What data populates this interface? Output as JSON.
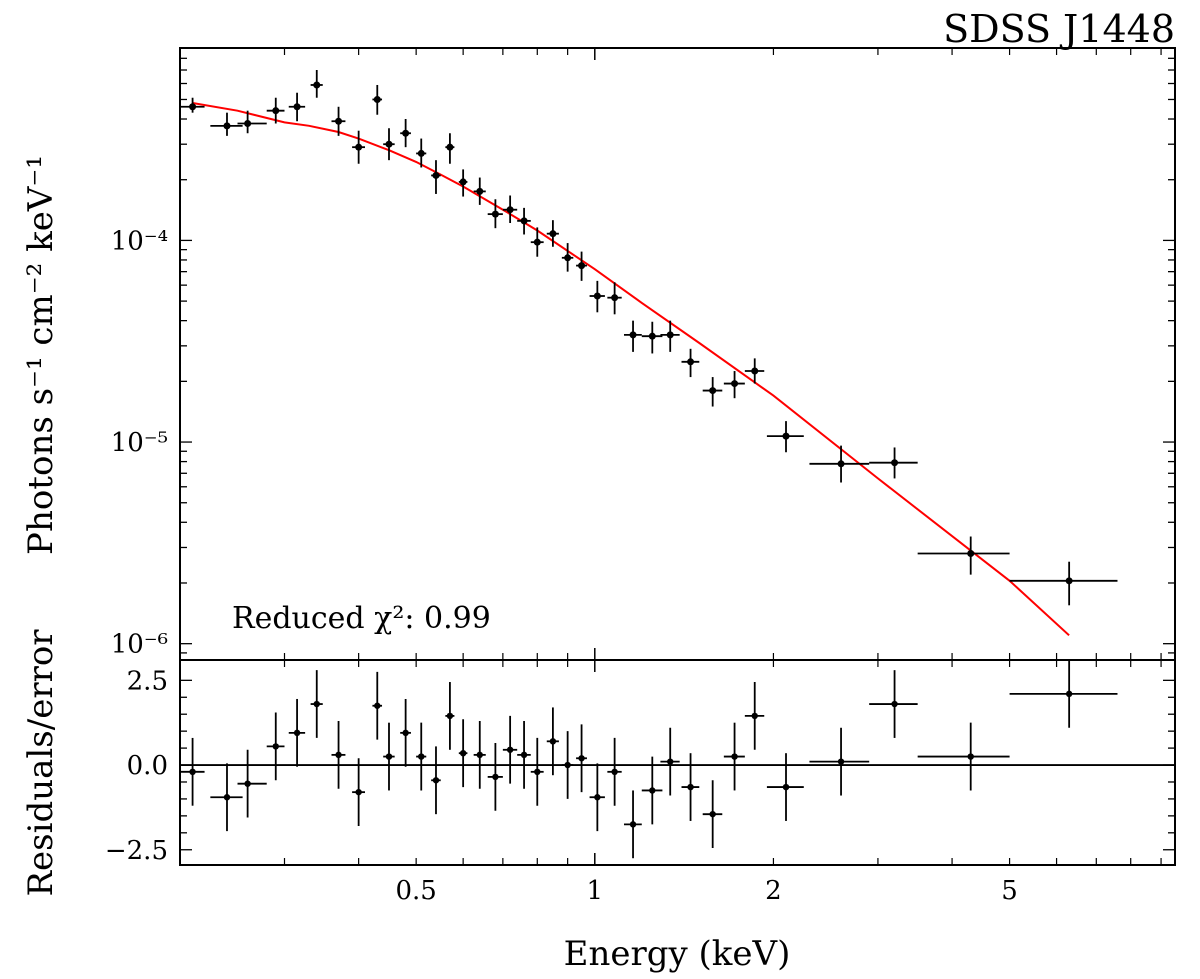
{
  "chart_data": [
    {
      "panel": "spectrum",
      "type": "scatter",
      "title": "SDSS J1448",
      "ylabel": "Photons s⁻¹ cm⁻² keV⁻¹",
      "xscale": "log",
      "yscale": "log",
      "xlim": [
        0.2,
        9.5
      ],
      "ylim": [
        8.3e-07,
        0.0009
      ],
      "ytick_labels": [
        {
          "value": 1e-06,
          "label": "10⁻⁶"
        },
        {
          "value": 1e-05,
          "label": "10⁻⁵"
        },
        {
          "value": 0.0001,
          "label": "10⁻⁴"
        }
      ],
      "annotation": "Reduced χ²: 0.99",
      "series": [
        {
          "kind": "data",
          "color": "#000000",
          "points": [
            {
              "x": 0.21,
              "y": 0.00046,
              "xerr": [
                0.01,
                0.01
              ],
              "yerr": [
                3e-05,
                5e-05
              ]
            },
            {
              "x": 0.24,
              "y": 0.00037,
              "xerr": [
                0.015,
                0.015
              ],
              "yerr": [
                4e-05,
                6e-05
              ]
            },
            {
              "x": 0.26,
              "y": 0.00038,
              "xerr": [
                0.01,
                0.02
              ],
              "yerr": [
                4e-05,
                6e-05
              ]
            },
            {
              "x": 0.29,
              "y": 0.00044,
              "xerr": [
                0.01,
                0.01
              ],
              "yerr": [
                6e-05,
                7e-05
              ]
            },
            {
              "x": 0.315,
              "y": 0.00046,
              "xerr": [
                0.01,
                0.01
              ],
              "yerr": [
                7e-05,
                8e-05
              ]
            },
            {
              "x": 0.34,
              "y": 0.00059,
              "xerr": [
                0.008,
                0.008
              ],
              "yerr": [
                8e-05,
                0.00011
              ]
            },
            {
              "x": 0.37,
              "y": 0.00039,
              "xerr": [
                0.01,
                0.01
              ],
              "yerr": [
                6e-05,
                7e-05
              ]
            },
            {
              "x": 0.4,
              "y": 0.00029,
              "xerr": [
                0.01,
                0.01
              ],
              "yerr": [
                5e-05,
                6e-05
              ]
            },
            {
              "x": 0.43,
              "y": 0.0005,
              "xerr": [
                0.008,
                0.008
              ],
              "yerr": [
                8e-05,
                9e-05
              ]
            },
            {
              "x": 0.45,
              "y": 0.0003,
              "xerr": [
                0.01,
                0.01
              ],
              "yerr": [
                5e-05,
                6e-05
              ]
            },
            {
              "x": 0.48,
              "y": 0.00034,
              "xerr": [
                0.01,
                0.01
              ],
              "yerr": [
                5e-05,
                6e-05
              ]
            },
            {
              "x": 0.51,
              "y": 0.00027,
              "xerr": [
                0.01,
                0.01
              ],
              "yerr": [
                4e-05,
                5e-05
              ]
            },
            {
              "x": 0.54,
              "y": 0.00021,
              "xerr": [
                0.01,
                0.01
              ],
              "yerr": [
                4e-05,
                4e-05
              ]
            },
            {
              "x": 0.57,
              "y": 0.00029,
              "xerr": [
                0.01,
                0.01
              ],
              "yerr": [
                5e-05,
                5e-05
              ]
            },
            {
              "x": 0.6,
              "y": 0.000195,
              "xerr": [
                0.01,
                0.01
              ],
              "yerr": [
                3e-05,
                3e-05
              ]
            },
            {
              "x": 0.64,
              "y": 0.000175,
              "xerr": [
                0.015,
                0.015
              ],
              "yerr": [
                2.5e-05,
                3e-05
              ]
            },
            {
              "x": 0.68,
              "y": 0.000135,
              "xerr": [
                0.02,
                0.02
              ],
              "yerr": [
                2e-05,
                2.5e-05
              ]
            },
            {
              "x": 0.72,
              "y": 0.000142,
              "xerr": [
                0.02,
                0.02
              ],
              "yerr": [
                2e-05,
                2.5e-05
              ]
            },
            {
              "x": 0.76,
              "y": 0.000125,
              "xerr": [
                0.02,
                0.02
              ],
              "yerr": [
                1.8e-05,
                2e-05
              ]
            },
            {
              "x": 0.8,
              "y": 9.8e-05,
              "xerr": [
                0.02,
                0.02
              ],
              "yerr": [
                1.5e-05,
                1.8e-05
              ]
            },
            {
              "x": 0.85,
              "y": 0.000108,
              "xerr": [
                0.02,
                0.02
              ],
              "yerr": [
                1.5e-05,
                1.8e-05
              ]
            },
            {
              "x": 0.9,
              "y": 8.2e-05,
              "xerr": [
                0.02,
                0.02
              ],
              "yerr": [
                1.2e-05,
                1.5e-05
              ]
            },
            {
              "x": 0.95,
              "y": 7.5e-05,
              "xerr": [
                0.02,
                0.02
              ],
              "yerr": [
                1.2e-05,
                1.3e-05
              ]
            },
            {
              "x": 1.01,
              "y": 5.3e-05,
              "xerr": [
                0.03,
                0.03
              ],
              "yerr": [
                9e-06,
                1e-05
              ]
            },
            {
              "x": 1.08,
              "y": 5.2e-05,
              "xerr": [
                0.03,
                0.03
              ],
              "yerr": [
                9e-06,
                1e-05
              ]
            },
            {
              "x": 1.16,
              "y": 3.4e-05,
              "xerr": [
                0.04,
                0.04
              ],
              "yerr": [
                6e-06,
                6e-06
              ]
            },
            {
              "x": 1.25,
              "y": 3.35e-05,
              "xerr": [
                0.05,
                0.05
              ],
              "yerr": [
                6e-06,
                6e-06
              ]
            },
            {
              "x": 1.34,
              "y": 3.4e-05,
              "xerr": [
                0.05,
                0.05
              ],
              "yerr": [
                6e-06,
                6e-06
              ]
            },
            {
              "x": 1.45,
              "y": 2.5e-05,
              "xerr": [
                0.05,
                0.05
              ],
              "yerr": [
                4e-06,
                4e-06
              ]
            },
            {
              "x": 1.58,
              "y": 1.8e-05,
              "xerr": [
                0.06,
                0.06
              ],
              "yerr": [
                3e-06,
                3e-06
              ]
            },
            {
              "x": 1.72,
              "y": 1.95e-05,
              "xerr": [
                0.07,
                0.07
              ],
              "yerr": [
                3e-06,
                3e-06
              ]
            },
            {
              "x": 1.86,
              "y": 2.25e-05,
              "xerr": [
                0.07,
                0.07
              ],
              "yerr": [
                3e-06,
                3.5e-06
              ]
            },
            {
              "x": 2.1,
              "y": 1.07e-05,
              "xerr": [
                0.15,
                0.15
              ],
              "yerr": [
                1.8e-06,
                2e-06
              ]
            },
            {
              "x": 2.6,
              "y": 7.8e-06,
              "xerr": [
                0.3,
                0.3
              ],
              "yerr": [
                1.5e-06,
                1.8e-06
              ]
            },
            {
              "x": 3.2,
              "y": 7.9e-06,
              "xerr": [
                0.3,
                0.3
              ],
              "yerr": [
                1.3e-06,
                1.5e-06
              ]
            },
            {
              "x": 4.3,
              "y": 2.8e-06,
              "xerr": [
                0.8,
                0.7
              ],
              "yerr": [
                6e-07,
                6e-07
              ]
            },
            {
              "x": 6.3,
              "y": 2.05e-06,
              "xerr": [
                1.3,
                1.3
              ],
              "yerr": [
                5e-07,
                5e-07
              ]
            }
          ]
        },
        {
          "kind": "model",
          "color": "#ff0000",
          "x": [
            0.21,
            0.25,
            0.3,
            0.33,
            0.37,
            0.4,
            0.45,
            0.5,
            0.55,
            0.6,
            0.7,
            0.8,
            1.0,
            1.2,
            1.5,
            2.0,
            3.0,
            5.0,
            6.3
          ],
          "y": [
            0.00048,
            0.00044,
            0.000385,
            0.00037,
            0.000345,
            0.00032,
            0.00028,
            0.000245,
            0.000212,
            0.000185,
            0.000142,
            0.000112,
            7.2e-05,
            4.9e-05,
            3.1e-05,
            1.7e-05,
            6.6e-06,
            2.05e-06,
            1.1e-06
          ]
        }
      ]
    },
    {
      "panel": "residuals",
      "type": "scatter",
      "xlabel": "Energy (keV)",
      "ylabel": "Residuals/error",
      "xscale": "log",
      "xlim": [
        0.2,
        9.5
      ],
      "ylim": [
        -2.95,
        3.1
      ],
      "zero_line": 0,
      "xtick_labels": [
        {
          "value": 0.5,
          "label": "0.5"
        },
        {
          "value": 1,
          "label": "1"
        },
        {
          "value": 2,
          "label": "2"
        },
        {
          "value": 5,
          "label": "5"
        }
      ],
      "ytick_labels": [
        {
          "value": 2.5,
          "label": "2.5"
        },
        {
          "value": 0,
          "label": "0.0"
        },
        {
          "value": -2.5,
          "label": "−2.5"
        }
      ],
      "points": [
        {
          "x": 0.21,
          "y": -0.2,
          "xerr": [
            0.01,
            0.01
          ],
          "yerr": [
            1.0,
            1.0
          ]
        },
        {
          "x": 0.24,
          "y": -0.95,
          "xerr": [
            0.015,
            0.015
          ],
          "yerr": [
            1.0,
            1.0
          ]
        },
        {
          "x": 0.26,
          "y": -0.55,
          "xerr": [
            0.01,
            0.02
          ],
          "yerr": [
            1.0,
            1.0
          ]
        },
        {
          "x": 0.29,
          "y": 0.55,
          "xerr": [
            0.01,
            0.01
          ],
          "yerr": [
            1.0,
            1.0
          ]
        },
        {
          "x": 0.315,
          "y": 0.95,
          "xerr": [
            0.01,
            0.01
          ],
          "yerr": [
            1.0,
            1.0
          ]
        },
        {
          "x": 0.34,
          "y": 1.8,
          "xerr": [
            0.008,
            0.008
          ],
          "yerr": [
            1.0,
            1.0
          ]
        },
        {
          "x": 0.37,
          "y": 0.3,
          "xerr": [
            0.01,
            0.01
          ],
          "yerr": [
            1.0,
            1.0
          ]
        },
        {
          "x": 0.4,
          "y": -0.8,
          "xerr": [
            0.01,
            0.01
          ],
          "yerr": [
            1.0,
            1.0
          ]
        },
        {
          "x": 0.43,
          "y": 1.75,
          "xerr": [
            0.008,
            0.008
          ],
          "yerr": [
            1.0,
            1.0
          ]
        },
        {
          "x": 0.45,
          "y": 0.25,
          "xerr": [
            0.01,
            0.01
          ],
          "yerr": [
            1.0,
            1.0
          ]
        },
        {
          "x": 0.48,
          "y": 0.95,
          "xerr": [
            0.01,
            0.01
          ],
          "yerr": [
            1.0,
            1.0
          ]
        },
        {
          "x": 0.51,
          "y": 0.25,
          "xerr": [
            0.01,
            0.01
          ],
          "yerr": [
            1.0,
            1.0
          ]
        },
        {
          "x": 0.54,
          "y": -0.45,
          "xerr": [
            0.01,
            0.01
          ],
          "yerr": [
            1.0,
            1.0
          ]
        },
        {
          "x": 0.57,
          "y": 1.45,
          "xerr": [
            0.01,
            0.01
          ],
          "yerr": [
            1.0,
            1.0
          ]
        },
        {
          "x": 0.6,
          "y": 0.35,
          "xerr": [
            0.01,
            0.01
          ],
          "yerr": [
            1.0,
            1.0
          ]
        },
        {
          "x": 0.64,
          "y": 0.3,
          "xerr": [
            0.015,
            0.015
          ],
          "yerr": [
            1.0,
            1.0
          ]
        },
        {
          "x": 0.68,
          "y": -0.35,
          "xerr": [
            0.02,
            0.02
          ],
          "yerr": [
            1.0,
            1.0
          ]
        },
        {
          "x": 0.72,
          "y": 0.45,
          "xerr": [
            0.02,
            0.02
          ],
          "yerr": [
            1.0,
            1.0
          ]
        },
        {
          "x": 0.76,
          "y": 0.3,
          "xerr": [
            0.02,
            0.02
          ],
          "yerr": [
            1.0,
            1.0
          ]
        },
        {
          "x": 0.8,
          "y": -0.2,
          "xerr": [
            0.02,
            0.02
          ],
          "yerr": [
            1.0,
            1.0
          ]
        },
        {
          "x": 0.85,
          "y": 0.7,
          "xerr": [
            0.02,
            0.02
          ],
          "yerr": [
            1.0,
            1.0
          ]
        },
        {
          "x": 0.9,
          "y": 0.0,
          "xerr": [
            0.02,
            0.02
          ],
          "yerr": [
            1.0,
            1.0
          ]
        },
        {
          "x": 0.95,
          "y": 0.2,
          "xerr": [
            0.02,
            0.02
          ],
          "yerr": [
            1.0,
            1.0
          ]
        },
        {
          "x": 1.01,
          "y": -0.95,
          "xerr": [
            0.03,
            0.03
          ],
          "yerr": [
            1.0,
            1.0
          ]
        },
        {
          "x": 1.08,
          "y": -0.2,
          "xerr": [
            0.03,
            0.03
          ],
          "yerr": [
            1.0,
            1.0
          ]
        },
        {
          "x": 1.16,
          "y": -1.75,
          "xerr": [
            0.04,
            0.04
          ],
          "yerr": [
            1.0,
            1.0
          ]
        },
        {
          "x": 1.25,
          "y": -0.75,
          "xerr": [
            0.05,
            0.05
          ],
          "yerr": [
            1.0,
            1.0
          ]
        },
        {
          "x": 1.34,
          "y": 0.1,
          "xerr": [
            0.05,
            0.05
          ],
          "yerr": [
            1.0,
            1.0
          ]
        },
        {
          "x": 1.45,
          "y": -0.65,
          "xerr": [
            0.05,
            0.05
          ],
          "yerr": [
            1.0,
            1.0
          ]
        },
        {
          "x": 1.58,
          "y": -1.45,
          "xerr": [
            0.06,
            0.06
          ],
          "yerr": [
            1.0,
            1.0
          ]
        },
        {
          "x": 1.72,
          "y": 0.25,
          "xerr": [
            0.07,
            0.07
          ],
          "yerr": [
            1.0,
            1.0
          ]
        },
        {
          "x": 1.86,
          "y": 1.45,
          "xerr": [
            0.07,
            0.07
          ],
          "yerr": [
            1.0,
            1.0
          ]
        },
        {
          "x": 2.1,
          "y": -0.65,
          "xerr": [
            0.15,
            0.15
          ],
          "yerr": [
            1.0,
            1.0
          ]
        },
        {
          "x": 2.6,
          "y": 0.1,
          "xerr": [
            0.3,
            0.3
          ],
          "yerr": [
            1.0,
            1.0
          ]
        },
        {
          "x": 3.2,
          "y": 1.8,
          "xerr": [
            0.3,
            0.3
          ],
          "yerr": [
            1.0,
            1.0
          ]
        },
        {
          "x": 4.3,
          "y": 0.25,
          "xerr": [
            0.8,
            0.7
          ],
          "yerr": [
            1.0,
            1.0
          ]
        },
        {
          "x": 6.3,
          "y": 2.1,
          "xerr": [
            1.3,
            1.3
          ],
          "yerr": [
            1.0,
            1.0
          ]
        }
      ]
    }
  ]
}
